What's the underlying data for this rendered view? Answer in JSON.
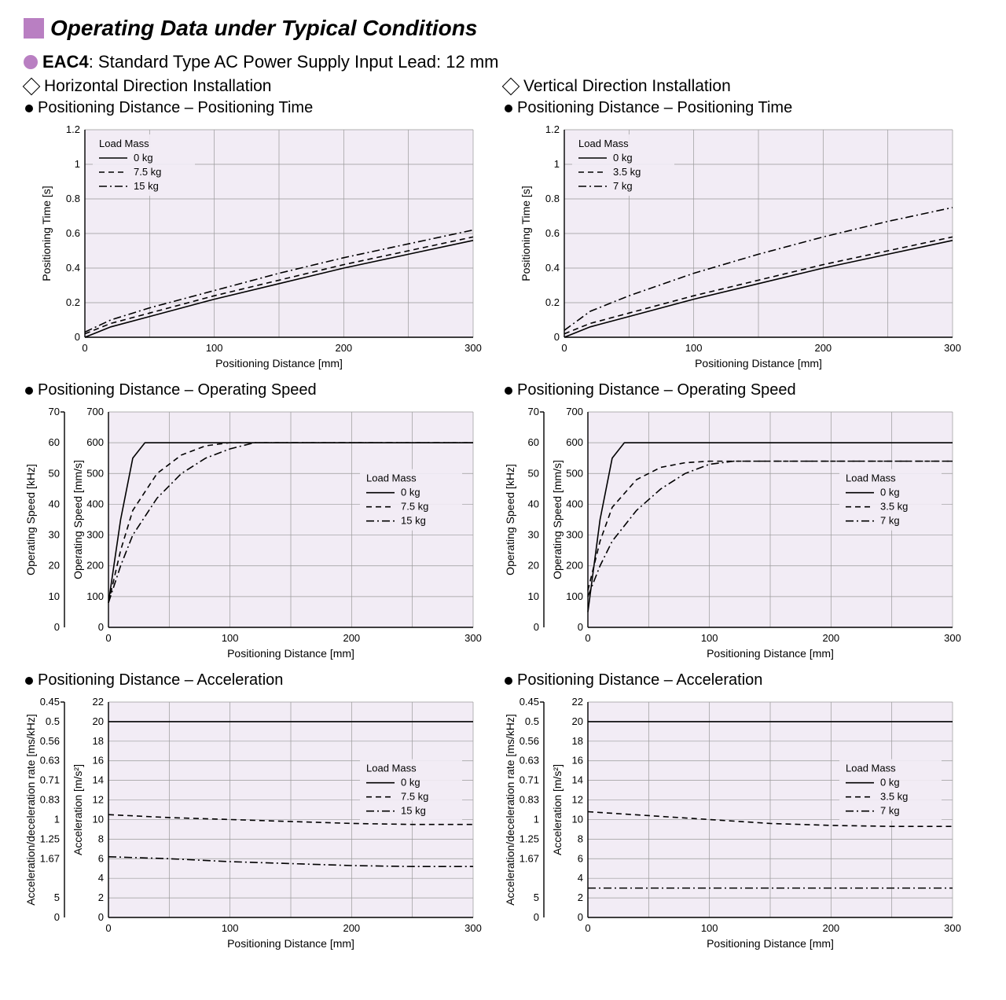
{
  "title": "Operating Data under Typical Conditions",
  "subtitle_model": "EAC4",
  "subtitle_rest": ": Standard Type  AC Power Supply Input  Lead: 12 mm",
  "colors": {
    "accent": "#b97fc2",
    "plot_bg": "#f2ecf5",
    "grid": "#9a9a9a",
    "axis": "#000000",
    "series": "#000000",
    "text": "#000000",
    "page_bg": "#ffffff"
  },
  "columns": {
    "left": {
      "section": "Horizontal Direction Installation"
    },
    "right": {
      "section": "Vertical Direction Installation"
    }
  },
  "legend_header": "Load Mass",
  "masses": {
    "left": [
      "0 kg",
      "7.5 kg",
      "15 kg"
    ],
    "right": [
      "0 kg",
      "3.5 kg",
      "7 kg"
    ]
  },
  "xaxis": {
    "label": "Positioning Distance [mm]",
    "min": 0,
    "max": 300,
    "ticks": [
      0,
      100,
      200,
      300
    ],
    "minor": [
      50,
      150,
      250
    ]
  },
  "charts": {
    "time": {
      "title": "Positioning Distance – Positioning Time",
      "ylabel": "Positioning Time [s]",
      "ymin": 0,
      "ymax": 1.2,
      "yticks": [
        0,
        0.2,
        0.4,
        0.6,
        0.8,
        1.0,
        1.2
      ],
      "legend_pos": "top-left",
      "left": {
        "s0": [
          [
            0,
            0.0
          ],
          [
            20,
            0.06
          ],
          [
            50,
            0.12
          ],
          [
            100,
            0.22
          ],
          [
            150,
            0.31
          ],
          [
            200,
            0.4
          ],
          [
            250,
            0.48
          ],
          [
            300,
            0.56
          ]
        ],
        "s1": [
          [
            0,
            0.02
          ],
          [
            20,
            0.08
          ],
          [
            50,
            0.14
          ],
          [
            100,
            0.24
          ],
          [
            150,
            0.33
          ],
          [
            200,
            0.42
          ],
          [
            250,
            0.5
          ],
          [
            300,
            0.58
          ]
        ],
        "s2": [
          [
            0,
            0.03
          ],
          [
            20,
            0.1
          ],
          [
            50,
            0.17
          ],
          [
            100,
            0.27
          ],
          [
            150,
            0.37
          ],
          [
            200,
            0.46
          ],
          [
            250,
            0.54
          ],
          [
            300,
            0.62
          ]
        ]
      },
      "right": {
        "s0": [
          [
            0,
            0.0
          ],
          [
            20,
            0.06
          ],
          [
            50,
            0.12
          ],
          [
            100,
            0.22
          ],
          [
            150,
            0.31
          ],
          [
            200,
            0.4
          ],
          [
            250,
            0.48
          ],
          [
            300,
            0.56
          ]
        ],
        "s1": [
          [
            0,
            0.02
          ],
          [
            20,
            0.08
          ],
          [
            50,
            0.14
          ],
          [
            100,
            0.24
          ],
          [
            150,
            0.33
          ],
          [
            200,
            0.42
          ],
          [
            250,
            0.5
          ],
          [
            300,
            0.58
          ]
        ],
        "s2": [
          [
            0,
            0.04
          ],
          [
            20,
            0.15
          ],
          [
            50,
            0.24
          ],
          [
            100,
            0.37
          ],
          [
            150,
            0.48
          ],
          [
            200,
            0.58
          ],
          [
            250,
            0.67
          ],
          [
            300,
            0.75
          ]
        ]
      }
    },
    "speed": {
      "title": "Positioning Distance – Operating Speed",
      "ylabel_outer": "Operating Speed [kHz]",
      "ylabel_inner": "Operating Speed [mm/s]",
      "ymin": 0,
      "ymax": 700,
      "yticks": [
        0,
        100,
        200,
        300,
        400,
        500,
        600,
        700
      ],
      "y2min": 0,
      "y2max": 70,
      "y2ticks": [
        0,
        10,
        20,
        30,
        40,
        50,
        60,
        70
      ],
      "legend_pos": "mid-right",
      "left": {
        "s0": [
          [
            0,
            80
          ],
          [
            10,
            350
          ],
          [
            20,
            550
          ],
          [
            30,
            600
          ],
          [
            50,
            600
          ],
          [
            100,
            600
          ],
          [
            200,
            600
          ],
          [
            300,
            600
          ]
        ],
        "s1": [
          [
            0,
            80
          ],
          [
            10,
            250
          ],
          [
            20,
            380
          ],
          [
            40,
            500
          ],
          [
            60,
            560
          ],
          [
            80,
            590
          ],
          [
            100,
            600
          ],
          [
            200,
            600
          ],
          [
            300,
            600
          ]
        ],
        "s2": [
          [
            0,
            80
          ],
          [
            10,
            200
          ],
          [
            20,
            300
          ],
          [
            40,
            420
          ],
          [
            60,
            500
          ],
          [
            80,
            550
          ],
          [
            100,
            580
          ],
          [
            120,
            600
          ],
          [
            200,
            600
          ],
          [
            300,
            600
          ]
        ]
      },
      "right": {
        "s0": [
          [
            0,
            50
          ],
          [
            10,
            350
          ],
          [
            20,
            550
          ],
          [
            30,
            600
          ],
          [
            50,
            600
          ],
          [
            100,
            600
          ],
          [
            200,
            600
          ],
          [
            300,
            600
          ]
        ],
        "s1": [
          [
            0,
            120
          ],
          [
            10,
            280
          ],
          [
            20,
            390
          ],
          [
            40,
            480
          ],
          [
            60,
            520
          ],
          [
            80,
            535
          ],
          [
            100,
            540
          ],
          [
            200,
            540
          ],
          [
            300,
            540
          ]
        ],
        "s2": [
          [
            0,
            100
          ],
          [
            10,
            200
          ],
          [
            20,
            280
          ],
          [
            40,
            380
          ],
          [
            60,
            450
          ],
          [
            80,
            500
          ],
          [
            100,
            530
          ],
          [
            120,
            540
          ],
          [
            200,
            540
          ],
          [
            300,
            540
          ]
        ]
      }
    },
    "accel": {
      "title": "Positioning Distance – Acceleration",
      "ylabel_outer": "Acceleration/deceleration rate [ms/kHz]",
      "ylabel_inner": "Acceleration [m/s²]",
      "ymin": 0,
      "ymax": 22,
      "yticks": [
        0,
        2,
        4,
        6,
        8,
        10,
        12,
        14,
        16,
        18,
        20,
        22
      ],
      "y2ticks": [
        0,
        5.0,
        1.67,
        1.25,
        1.0,
        0.83,
        0.71,
        0.63,
        0.56,
        0.5,
        0.45
      ],
      "y2tick_pos": [
        0,
        2,
        6,
        8,
        10,
        12,
        14,
        16,
        18,
        20,
        22
      ],
      "legend_pos": "mid-right",
      "left": {
        "s0": [
          [
            0,
            20
          ],
          [
            300,
            20
          ]
        ],
        "s1": [
          [
            0,
            10.5
          ],
          [
            50,
            10.2
          ],
          [
            100,
            10.0
          ],
          [
            150,
            9.8
          ],
          [
            200,
            9.6
          ],
          [
            250,
            9.5
          ],
          [
            300,
            9.5
          ]
        ],
        "s2": [
          [
            0,
            6.2
          ],
          [
            50,
            6.0
          ],
          [
            100,
            5.7
          ],
          [
            150,
            5.5
          ],
          [
            200,
            5.3
          ],
          [
            250,
            5.2
          ],
          [
            300,
            5.2
          ]
        ]
      },
      "right": {
        "s0": [
          [
            0,
            20
          ],
          [
            300,
            20
          ]
        ],
        "s1": [
          [
            0,
            10.8
          ],
          [
            50,
            10.4
          ],
          [
            100,
            10.0
          ],
          [
            150,
            9.6
          ],
          [
            200,
            9.4
          ],
          [
            250,
            9.3
          ],
          [
            300,
            9.3
          ]
        ],
        "s2": [
          [
            0,
            3.0
          ],
          [
            300,
            3.0
          ]
        ]
      }
    }
  }
}
